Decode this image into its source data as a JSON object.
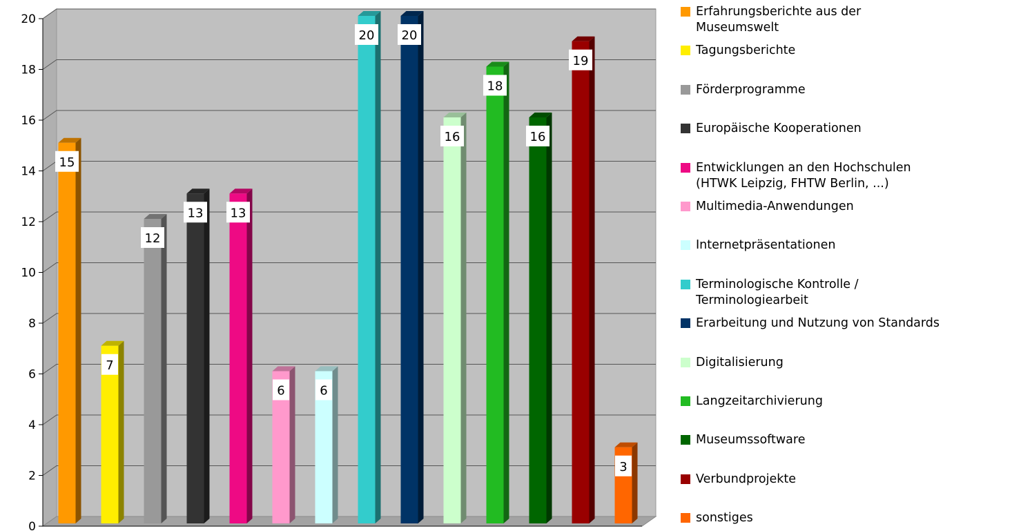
{
  "chart_data": {
    "type": "bar",
    "categories": [
      "Erfahrungsberichte aus der\nMuseumswelt",
      "Tagungsberichte",
      "Förderprogramme",
      "Europäische Kooperationen",
      "Entwicklungen an den Hochschulen\n(HTWK Leipzig, FHTW Berlin, ...)",
      "Multimedia-Anwendungen",
      "Internetpräsentationen",
      "Terminologische Kontrolle /\nTerminologiearbeit",
      "Erarbeitung und Nutzung von Standards",
      "Digitalisierung",
      "Langzeitarchivierung",
      "Museumssoftware",
      "Verbundprojekte",
      "sonstiges"
    ],
    "values": [
      15,
      7,
      12,
      13,
      13,
      6,
      6,
      20,
      20,
      16,
      18,
      16,
      19,
      3
    ],
    "colors": [
      "#ff9900",
      "#ffee00",
      "#999999",
      "#333333",
      "#ee0a84",
      "#ff99cc",
      "#ccffff",
      "#33cccc",
      "#003366",
      "#ccffcc",
      "#22bb22",
      "#006600",
      "#990000",
      "#ff6600"
    ],
    "ylim": [
      0,
      20
    ],
    "yticks": [
      "0",
      "2",
      "4",
      "6",
      "8",
      "10",
      "12",
      "14",
      "16",
      "18",
      "20"
    ],
    "grid": true,
    "legend_position": "right",
    "title": "",
    "xlabel": "",
    "ylabel": ""
  }
}
